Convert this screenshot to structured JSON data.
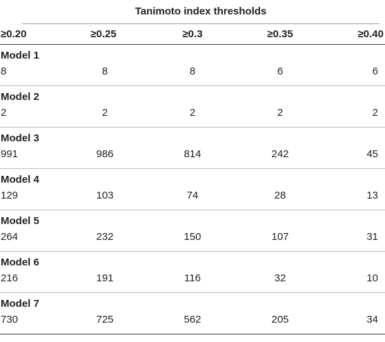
{
  "title": "Tanimoto index thresholds",
  "columns": [
    "≥0.20",
    "≥0.25",
    "≥0.3",
    "≥0.35",
    "≥0.40"
  ],
  "models": [
    {
      "label": "Model 1",
      "values": [
        "8",
        "8",
        "8",
        "6",
        "6"
      ]
    },
    {
      "label": "Model 2",
      "values": [
        "2",
        "2",
        "2",
        "2",
        "2"
      ]
    },
    {
      "label": "Model 3",
      "values": [
        "991",
        "986",
        "814",
        "242",
        "45"
      ]
    },
    {
      "label": "Model 4",
      "values": [
        "129",
        "103",
        "74",
        "28",
        "13"
      ]
    },
    {
      "label": "Model 5",
      "values": [
        "264",
        "232",
        "150",
        "107",
        "31"
      ]
    },
    {
      "label": "Model 6",
      "values": [
        "216",
        "191",
        "116",
        "32",
        "10"
      ]
    },
    {
      "label": "Model 7",
      "values": [
        "730",
        "725",
        "562",
        "205",
        "34"
      ]
    }
  ]
}
